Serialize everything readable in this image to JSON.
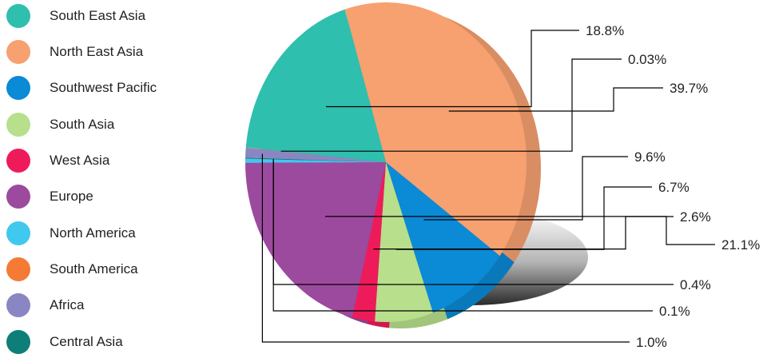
{
  "chart_data": {
    "type": "pie",
    "title": "",
    "legend_position": "left",
    "slices": [
      {
        "name": "South East Asia",
        "value": 18.8,
        "label": "18.8%",
        "color": "#2fbfae"
      },
      {
        "name": "North East Asia",
        "value": 39.7,
        "label": "39.7%",
        "color": "#f7a070"
      },
      {
        "name": "Southwest Pacific",
        "value": 9.6,
        "label": "9.6%",
        "color": "#0b8ad6"
      },
      {
        "name": "South Asia",
        "value": 6.7,
        "label": "6.7%",
        "color": "#b8df8c"
      },
      {
        "name": "West Asia",
        "value": 2.6,
        "label": "2.6%",
        "color": "#ee1b5b"
      },
      {
        "name": "Europe",
        "value": 21.1,
        "label": "21.1%",
        "color": "#9c4a9e"
      },
      {
        "name": "North America",
        "value": 0.4,
        "label": "0.4%",
        "color": "#41c8ee"
      },
      {
        "name": "South America",
        "value": 0.03,
        "label": "0.03%",
        "color": "#f47a36"
      },
      {
        "name": "Africa",
        "value": 1.0,
        "label": "1.0%",
        "color": "#8a86c4"
      },
      {
        "name": "Central Asia",
        "value": 0.1,
        "label": "0.1%",
        "color": "#0e7e78"
      }
    ]
  }
}
